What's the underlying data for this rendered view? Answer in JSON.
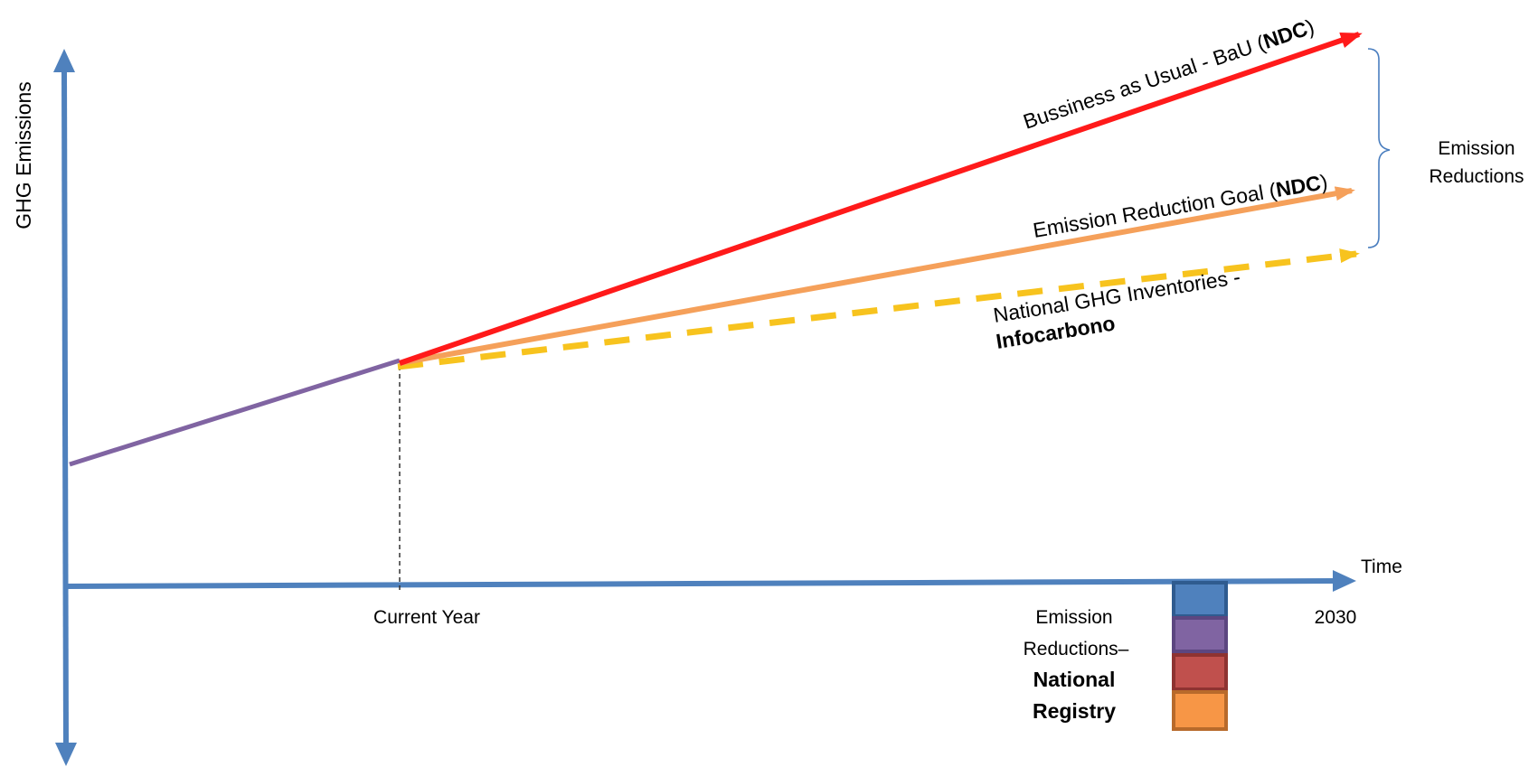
{
  "axes": {
    "y_label": "GHG Emissions",
    "x_label": "Time",
    "current_year_label": "Current Year",
    "end_year_label": "2030"
  },
  "lines": {
    "bau": {
      "text": "Bussiness as Usual - BaU (",
      "bold": "NDC",
      "close": ")",
      "color": "#ff1a1a"
    },
    "goal": {
      "text": "Emission Reduction Goal (",
      "bold": "NDC",
      "close": ")",
      "color": "#f5a05a"
    },
    "inventory": {
      "line1": "National GHG Inventories -",
      "line2": "Infocarbono",
      "color": "#f7c31e"
    },
    "history": {
      "color": "#8064a2"
    }
  },
  "brace": {
    "line1": "Emission",
    "line2": "Reductions",
    "color": "#4a7ebf"
  },
  "registry": {
    "line1": "Emission",
    "line2": "Reductions–",
    "line3": "National",
    "line4": "Registry",
    "blocks": [
      {
        "name": "blue",
        "fill": "#4f81bd",
        "stroke": "#2f5b8f"
      },
      {
        "name": "purple",
        "fill": "#8064a2",
        "stroke": "#5c4680"
      },
      {
        "name": "red",
        "fill": "#c0504d",
        "stroke": "#8e3331"
      },
      {
        "name": "orange",
        "fill": "#f79646",
        "stroke": "#b86a2b"
      }
    ]
  },
  "axis_color": "#4f81bd"
}
